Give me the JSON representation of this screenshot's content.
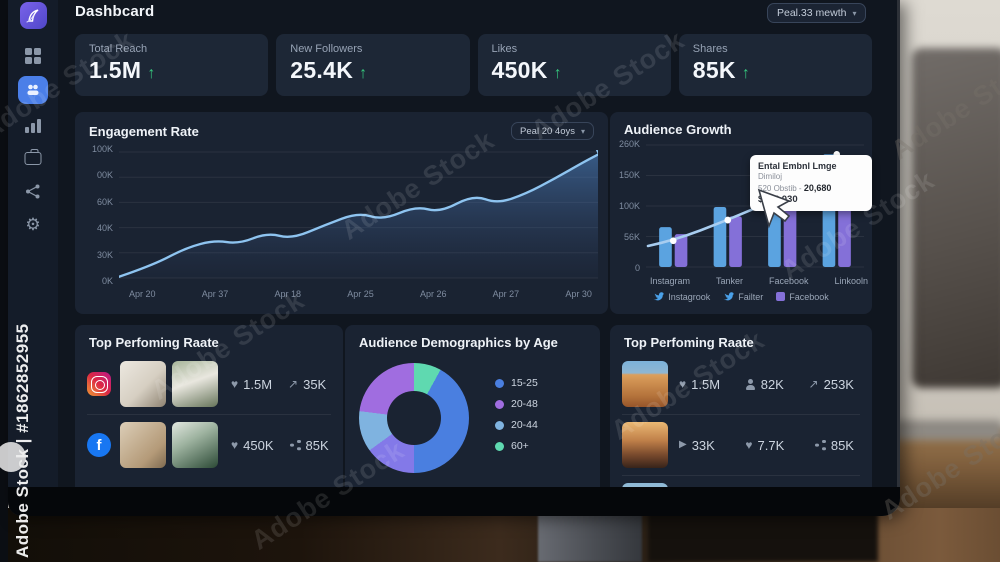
{
  "watermark": {
    "diagonal": "Adobe Stock",
    "vertical": "Adobe Stock | #1862852955"
  },
  "glyphs": {
    "chevron": "▾",
    "up_arrow": "↑",
    "heart": "♥",
    "share_arrow": "↗",
    "play": "▶",
    "gear": "⚙",
    "facebook_f": "f"
  },
  "header": {
    "title": "Dashbcard",
    "period": "Peal.33 mewth"
  },
  "sidebar": {
    "icons": [
      "app-logo",
      "grid",
      "users-active",
      "bar-chart",
      "briefcase",
      "share-network",
      "settings-gear"
    ]
  },
  "stats": [
    {
      "label": "Total Reach",
      "value": "1.5M",
      "trend": "up"
    },
    {
      "label": "New Followers",
      "value": "25.4K",
      "trend": "up"
    },
    {
      "label": "Likes",
      "value": "450K",
      "trend": "up"
    },
    {
      "label": "Shares",
      "value": "85K",
      "trend": "up"
    }
  ],
  "engagement": {
    "title": "Engagement Rate",
    "period": "Peal 20 4oys"
  },
  "audience_growth": {
    "title": "Audience Growth",
    "tooltip": {
      "title": "Ental Embnl Lmge",
      "subtitle": "Dimiloj",
      "range": "520 Obstib - ",
      "range_value": "20,680",
      "total": "$193,030"
    }
  },
  "demographics": {
    "title": "Audience Demographics by Age"
  },
  "posts_left": {
    "title": "Top Perfoming Raate",
    "rows": [
      {
        "platform": "instagram",
        "stats": [
          {
            "icon": "heart",
            "value": "1.5M"
          },
          {
            "icon": "share_arrow",
            "value": "35K"
          }
        ]
      },
      {
        "platform": "facebook",
        "stats": [
          {
            "icon": "heart",
            "value": "450K"
          },
          {
            "icon": "share_nodes",
            "value": "85K"
          }
        ]
      }
    ]
  },
  "posts_right": {
    "title": "Top Perfoming Raate",
    "rows": [
      {
        "stats": [
          {
            "icon": "heart",
            "value": "1.5M"
          },
          {
            "icon": "person",
            "value": "82K"
          },
          {
            "icon": "share_arrow",
            "value": "253K"
          }
        ]
      },
      {
        "stats": [
          {
            "icon": "play",
            "value": "33K"
          },
          {
            "icon": "heart",
            "value": "7.7K"
          },
          {
            "icon": "share_nodes",
            "value": "85K"
          }
        ]
      }
    ]
  },
  "chart_data": [
    {
      "type": "area",
      "title": "Engagement Rate",
      "y_ticks": [
        "100K",
        "00K",
        "60K",
        "40K",
        "30K",
        "0K"
      ],
      "x_ticks": [
        "Apr 20",
        "Apr 37",
        "Apr 18",
        "Apr 25",
        "Apr 26",
        "Apr 27",
        "Apr 30"
      ],
      "ylim": [
        0,
        100
      ],
      "line_color": "#8ec4f0",
      "points": [
        [
          0,
          1
        ],
        [
          7,
          10
        ],
        [
          14,
          24
        ],
        [
          20,
          30
        ],
        [
          25,
          27
        ],
        [
          31,
          36
        ],
        [
          36,
          31
        ],
        [
          43,
          42
        ],
        [
          50,
          52
        ],
        [
          55,
          46
        ],
        [
          62,
          57
        ],
        [
          67,
          52
        ],
        [
          74,
          66
        ],
        [
          79,
          59
        ],
        [
          85,
          67
        ],
        [
          91,
          79
        ],
        [
          97,
          92
        ],
        [
          100,
          98
        ]
      ]
    },
    {
      "type": "bar",
      "title": "Audience Growth",
      "y_ticks": [
        "260K",
        "150K",
        "100K",
        "56K",
        "0"
      ],
      "ymax": 260,
      "categories": [
        "Instagram",
        "Tanker",
        "Facebook",
        "Linkooln"
      ],
      "series": [
        {
          "name": "primary",
          "color": "#5ba3e0",
          "values": [
            85,
            128,
            172,
            240
          ]
        },
        {
          "name": "secondary",
          "color": "#8470d8",
          "values": [
            70,
            108,
            148,
            212
          ]
        }
      ],
      "line_overlay": {
        "color": "#a8cdf0",
        "values": [
          56,
          100,
          150,
          240
        ]
      },
      "legend": [
        {
          "icon": "bird",
          "label": "Instagrook"
        },
        {
          "icon": "bird",
          "label": "Failter"
        },
        {
          "icon": "square",
          "label": "Facebook"
        }
      ]
    },
    {
      "type": "donut",
      "title": "Audience Demographics by Age",
      "slices": [
        {
          "label": "60+",
          "value": 8,
          "color": "#5fd9b0"
        },
        {
          "label": "15-25",
          "value": 42,
          "color": "#4a7fe0"
        },
        {
          "label": "20-48b",
          "value": 15,
          "color": "#8379e8"
        },
        {
          "label": "20-44",
          "value": 12,
          "color": "#7fb3e0"
        },
        {
          "label": "20-48",
          "value": 23,
          "color": "#a06de0"
        }
      ],
      "legend": [
        {
          "label": "15-25",
          "color": "#4a7fe0"
        },
        {
          "label": "20-48",
          "color": "#a06de0"
        },
        {
          "label": "20-44",
          "color": "#7fb3e0"
        },
        {
          "label": "60+",
          "color": "#5fd9b0"
        }
      ]
    }
  ]
}
